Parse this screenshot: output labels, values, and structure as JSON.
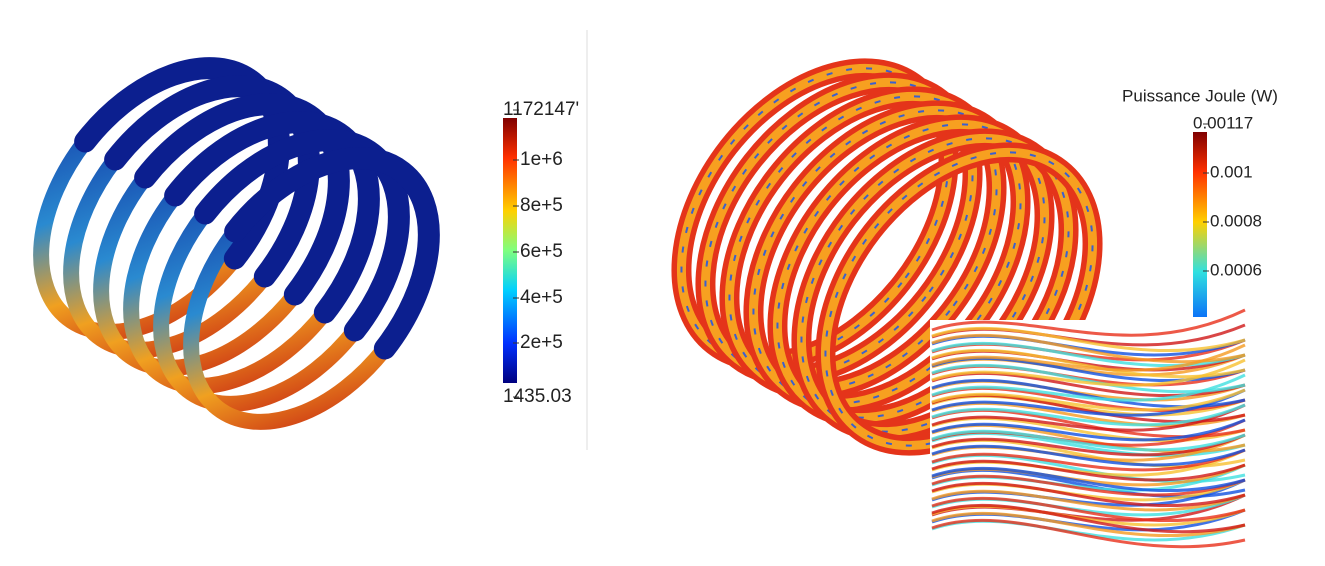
{
  "left_colorbar": {
    "labels": [
      "1172147'",
      "1e+6",
      "8e+5",
      "6e+5",
      "4e+5",
      "2e+5",
      "1435.03"
    ]
  },
  "right_colorbar": {
    "title": "Puissance Joule (W)",
    "labels": [
      "0.00117",
      "0.001",
      "0.0008",
      "0.0006"
    ]
  }
}
